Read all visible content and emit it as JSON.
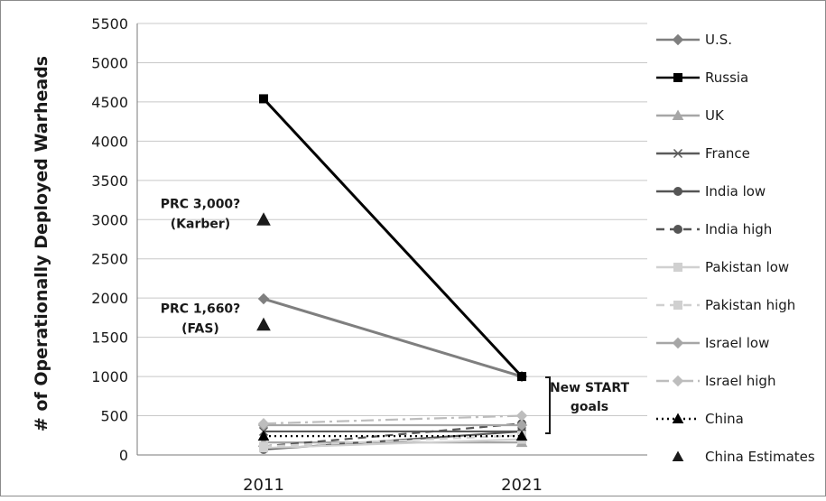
{
  "chart_data": {
    "type": "line",
    "title": "",
    "xlabel": "",
    "ylabel": "# of Operationally Deployed Warheads",
    "categories": [
      "2011",
      "2021"
    ],
    "ylim": [
      0,
      5500
    ],
    "yticks": [
      0,
      500,
      1000,
      1500,
      2000,
      2500,
      3000,
      3500,
      4000,
      4500,
      5000,
      5500
    ],
    "grid": true,
    "legend_position": "right",
    "series": [
      {
        "name": "U.S.",
        "values": [
          1990,
          1000
        ],
        "color": "#7f7f7f",
        "marker": "diamond",
        "dash": "solid"
      },
      {
        "name": "Russia",
        "values": [
          4540,
          1000
        ],
        "color": "#000000",
        "marker": "square",
        "dash": "solid"
      },
      {
        "name": "UK",
        "values": [
          160,
          160
        ],
        "color": "#a6a6a6",
        "marker": "triangle",
        "dash": "solid"
      },
      {
        "name": "France",
        "values": [
          300,
          300
        ],
        "color": "#5a5a5a",
        "marker": "x",
        "dash": "solid"
      },
      {
        "name": "India low",
        "values": [
          70,
          300
        ],
        "color": "#555555",
        "marker": "circle",
        "dash": "solid"
      },
      {
        "name": "India high",
        "values": [
          110,
          400
        ],
        "color": "#555555",
        "marker": "circle",
        "dash": "dash"
      },
      {
        "name": "Pakistan low",
        "values": [
          90,
          200
        ],
        "color": "#d0d0d0",
        "marker": "square",
        "dash": "solid"
      },
      {
        "name": "Pakistan high",
        "values": [
          110,
          250
        ],
        "color": "#d0d0d0",
        "marker": "square",
        "dash": "dash"
      },
      {
        "name": "Israel low",
        "values": [
          380,
          380
        ],
        "color": "#a6a6a6",
        "marker": "diamond",
        "dash": "solid"
      },
      {
        "name": "Israel high",
        "values": [
          400,
          500
        ],
        "color": "#bdbdbd",
        "marker": "diamond",
        "dash": "dashdot"
      },
      {
        "name": "China",
        "values": [
          240,
          240
        ],
        "color": "#000000",
        "marker": "triangle",
        "dash": "dot"
      }
    ],
    "estimates": {
      "name": "China Estimates",
      "points": [
        {
          "x": "2011",
          "y": 3000,
          "label_line1": "PRC 3,000?",
          "label_line2": "(Karber)"
        },
        {
          "x": "2011",
          "y": 1660,
          "label_line1": "PRC 1,660?",
          "label_line2": "(FAS)"
        }
      ]
    },
    "annotations": {
      "new_start_line1": "New START",
      "new_start_line2": "goals"
    }
  }
}
